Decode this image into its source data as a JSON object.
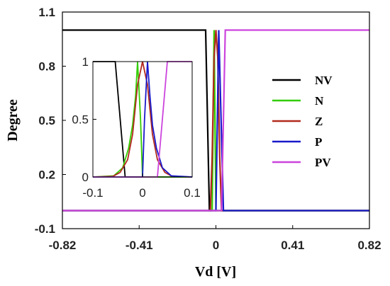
{
  "chart_data": [
    {
      "type": "line",
      "xlabel": "Vd [V]",
      "ylabel": "Degree",
      "xlim": [
        -0.82,
        0.82
      ],
      "ylim": [
        -0.1,
        1.1
      ],
      "x_ticks": [
        -0.82,
        -0.41,
        0,
        0.41,
        0.82
      ],
      "x_tick_labels": [
        "-0.82",
        "-0.41",
        "0",
        "0.41",
        "0.82"
      ],
      "y_ticks": [
        -0.1,
        0.2,
        0.5,
        0.8,
        1.1
      ],
      "y_tick_labels": [
        "-0.1",
        "0.2",
        "0.5",
        "0.8",
        "1.1"
      ],
      "legend_placement": "right",
      "series": [
        {
          "name": "NV",
          "color": "#000000",
          "x": [
            -0.82,
            -0.055,
            -0.035,
            0.82
          ],
          "y": [
            1.0,
            1.0,
            0.0,
            0.0
          ]
        },
        {
          "name": "N",
          "color": "#33cc00",
          "x": [
            -0.82,
            -0.02,
            -0.01,
            0.0,
            0.82
          ],
          "y": [
            0.0,
            0.0,
            1.0,
            0.0,
            0.0
          ]
        },
        {
          "name": "Z",
          "color": "#b22a1e",
          "x": [
            -0.82,
            -0.03,
            -0.02,
            -0.01,
            0.0,
            0.01,
            0.02,
            0.03,
            0.82
          ],
          "y": [
            0.0,
            0.0,
            0.3,
            0.85,
            1.0,
            0.85,
            0.3,
            0.0,
            0.0
          ]
        },
        {
          "name": "P",
          "color": "#1a1acc",
          "x": [
            -0.82,
            0.0,
            0.015,
            0.04,
            0.82
          ],
          "y": [
            0.0,
            0.0,
            1.0,
            0.0,
            0.0
          ]
        },
        {
          "name": "PV",
          "color": "#cc44dd",
          "x": [
            -0.82,
            0.03,
            0.05,
            0.82
          ],
          "y": [
            0.0,
            0.0,
            1.0,
            1.0
          ]
        }
      ]
    },
    {
      "type": "line",
      "xlim": [
        -0.1,
        0.1
      ],
      "ylim": [
        0,
        1
      ],
      "x_ticks": [
        -0.1,
        0,
        0.1
      ],
      "x_tick_labels": [
        "-0.1",
        "0",
        "0.1"
      ],
      "y_ticks": [
        0,
        0.5,
        1
      ],
      "y_tick_labels": [
        "0",
        "0.5",
        "1"
      ],
      "series": [
        {
          "name": "NV",
          "color": "#000000",
          "x": [
            -0.1,
            -0.055,
            -0.035,
            0.1
          ],
          "y": [
            1.0,
            1.0,
            0.0,
            0.0
          ]
        },
        {
          "name": "N",
          "color": "#33cc00",
          "x": [
            -0.1,
            -0.058,
            -0.04,
            -0.028,
            -0.02,
            -0.014,
            -0.01,
            -0.004,
            0.0,
            0.1
          ],
          "y": [
            0.0,
            0.01,
            0.08,
            0.25,
            0.45,
            0.7,
            1.0,
            0.5,
            0.0,
            0.0
          ]
        },
        {
          "name": "Z",
          "color": "#b22a1e",
          "x": [
            -0.1,
            -0.06,
            -0.045,
            -0.03,
            -0.02,
            -0.01,
            0.0,
            0.01,
            0.02,
            0.03,
            0.045,
            0.06,
            0.1
          ],
          "y": [
            0.0,
            0.005,
            0.04,
            0.15,
            0.37,
            0.8,
            1.0,
            0.8,
            0.37,
            0.15,
            0.04,
            0.005,
            0.0
          ]
        },
        {
          "name": "P",
          "color": "#1a1acc",
          "x": [
            -0.1,
            0.0,
            0.004,
            0.01,
            0.015,
            0.02,
            0.028,
            0.04,
            0.058,
            0.1
          ],
          "y": [
            0.0,
            0.0,
            0.5,
            1.0,
            0.7,
            0.45,
            0.25,
            0.08,
            0.01,
            0.0
          ]
        },
        {
          "name": "PV",
          "color": "#cc44dd",
          "x": [
            -0.1,
            0.03,
            0.05,
            0.1
          ],
          "y": [
            0.0,
            0.0,
            1.0,
            1.0
          ]
        }
      ]
    }
  ]
}
